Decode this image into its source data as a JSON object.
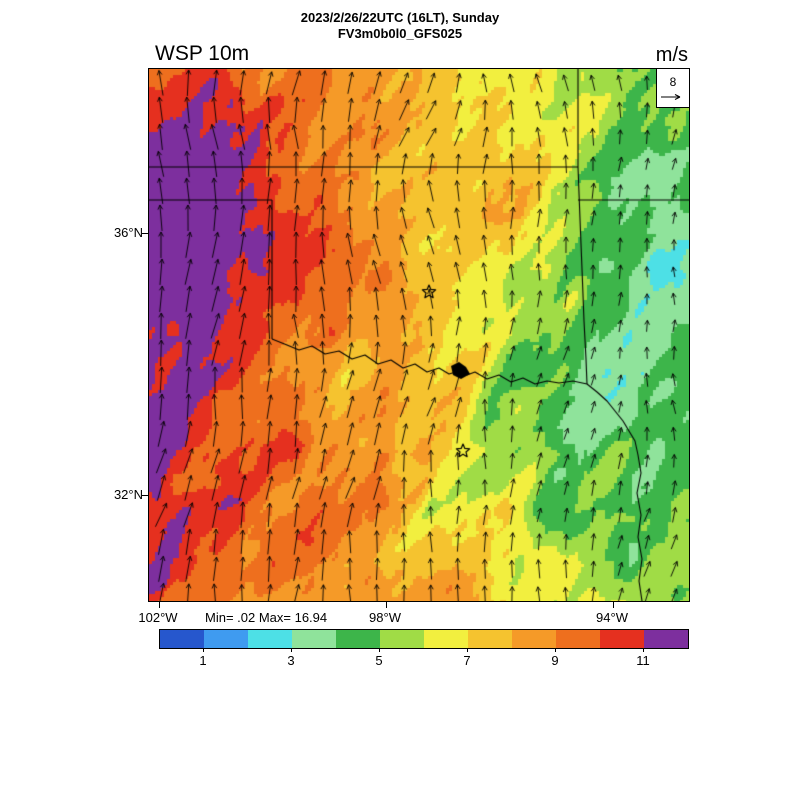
{
  "header": {
    "title_line1": "2023/2/26/22UTC (16LT), Sunday",
    "title_line2": "FV3m0b0l0_GFS025",
    "field_label": "WSP 10m",
    "units_label": "m/s"
  },
  "map": {
    "reference_vector": {
      "value_label": "8"
    },
    "stats_label": "Min= .02 Max= 16.94"
  },
  "axes": {
    "lat_labels": [
      {
        "text": "36°N"
      },
      {
        "text": "32°N"
      }
    ],
    "lon_labels": [
      {
        "text": "102°W"
      },
      {
        "text": "98°W"
      },
      {
        "text": "94°W"
      }
    ]
  },
  "chart_data": {
    "type": "heatmap",
    "title": "WSP 10m",
    "units": "m/s",
    "valid_time": "2023/2/26/22UTC (16LT), Sunday",
    "model": "FV3m0b0l0_GFS025",
    "min": 0.02,
    "max": 16.94,
    "reference_vector_ms": 8,
    "wind_direction": "predominantly southerly (arrows point toward north)",
    "extent": {
      "lon_ticks": [
        "102°W",
        "98°W",
        "94°W"
      ],
      "lat_ticks": [
        "36°N",
        "32°N"
      ]
    },
    "colorbar": {
      "bin_edges": [
        0,
        1,
        2,
        3,
        4,
        5,
        6,
        7,
        8,
        9,
        10,
        11,
        12
      ],
      "tick_values": [
        1,
        3,
        5,
        7,
        9,
        11
      ],
      "tick_labels": [
        "1",
        "3",
        "5",
        "7",
        "9",
        "11"
      ],
      "colors": [
        "#2657cd",
        "#3f9bf0",
        "#4de0e6",
        "#8fe39b",
        "#3db54a",
        "#a0dc46",
        "#f2ef3f",
        "#f5c32f",
        "#f59a28",
        "#ee6f1e",
        "#e5301f",
        "#7d2f9e"
      ]
    },
    "grid": {
      "note": "approximate 10 m wind speed (m/s) read off the shaded field on a 10x8 lon-lat grid, west to east, north to south",
      "values": [
        [
          10,
          10,
          9,
          9,
          8,
          8,
          7,
          6,
          5,
          5
        ],
        [
          12,
          11,
          10,
          9,
          8,
          8,
          7,
          6,
          5,
          5
        ],
        [
          12,
          12,
          10,
          9,
          9,
          8,
          7,
          5,
          4,
          4
        ],
        [
          12,
          11,
          10,
          9,
          8,
          7,
          6,
          5,
          4,
          3
        ],
        [
          12,
          11,
          9,
          8,
          8,
          7,
          5,
          4,
          3,
          4
        ],
        [
          12,
          10,
          10,
          9,
          8,
          7,
          6,
          5,
          4,
          4
        ],
        [
          11,
          10,
          9,
          9,
          8,
          7,
          7,
          5,
          4,
          5
        ],
        [
          10,
          10,
          9,
          8,
          8,
          8,
          7,
          6,
          5,
          5
        ]
      ]
    },
    "overlays": [
      "state boundaries (KS, MO, OK, AR, TX)",
      "Red River",
      "lake polygon",
      "two star city markers",
      "wind vector arrows"
    ]
  }
}
